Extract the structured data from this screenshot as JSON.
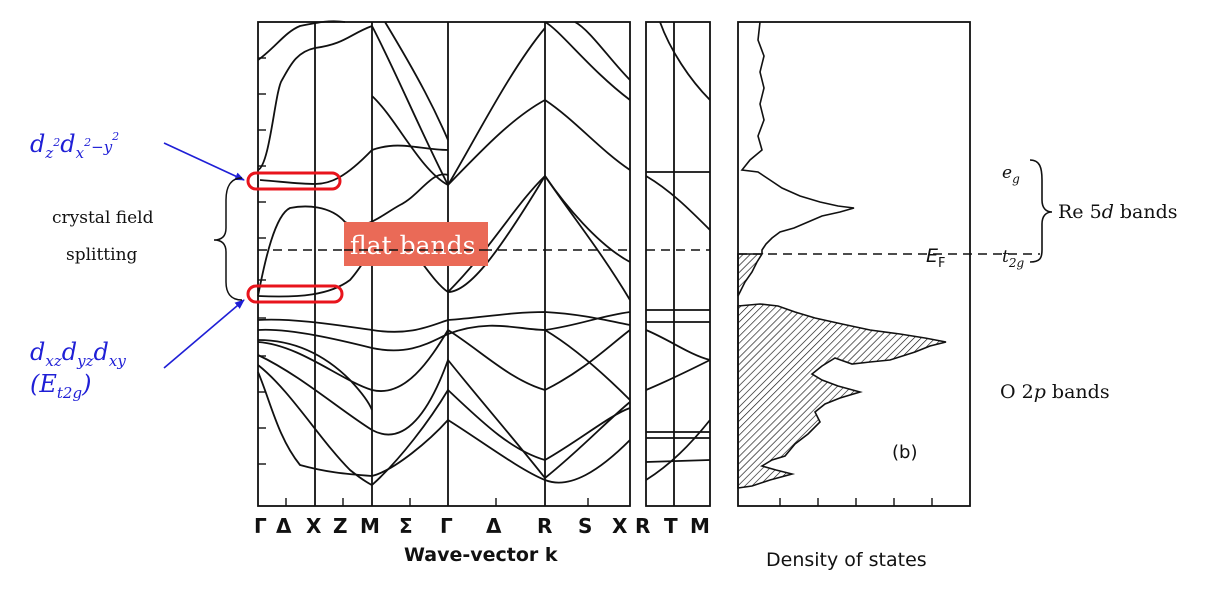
{
  "annotations": {
    "eg_orbitals": "dz²dx²−y²",
    "eg_orbitals_parts": [
      "d",
      "z",
      "2",
      "d",
      "x",
      "2",
      "−y",
      "2"
    ],
    "crystal_field_line1": "crystal field",
    "crystal_field_line2": "splitting",
    "flat_bands": "flat bands",
    "t2g_orbitals": "dxzdyzdxy",
    "t2g_orbitals_parts": [
      "d",
      "xz",
      "d",
      "yz",
      "d",
      "xy"
    ],
    "t2g_label": "(Et2g)",
    "t2g_label_parts": [
      "(E",
      "t2g",
      ")"
    ]
  },
  "band_panel": {
    "k_labels_main": [
      "Γ",
      "Δ",
      "X",
      "Z",
      "M",
      "Σ",
      "Γ",
      "Δ",
      "R",
      "S",
      "X"
    ],
    "k_labels_side": [
      "R",
      "T",
      "M"
    ],
    "xlabel": "Wave-vector k"
  },
  "dos_panel": {
    "xlabel": "Density of states",
    "panel_tag": "(b)",
    "eg": "e",
    "eg_sub": "g",
    "t2g": "t",
    "t2g_sub": "2g",
    "fermi": "E",
    "fermi_sub": "F",
    "re_bands": "Re 5d bands",
    "re_bands_parts": [
      "Re 5",
      "d",
      " bands"
    ],
    "o_bands": "O 2p bands",
    "o_bands_parts": [
      "O 2",
      "p",
      " bands"
    ]
  },
  "colors": {
    "annotation_text": "#1f1fd6",
    "highlight_ellipse": "#e8141c",
    "flat_bands_box": "#ea6a57",
    "ink": "#111111"
  }
}
